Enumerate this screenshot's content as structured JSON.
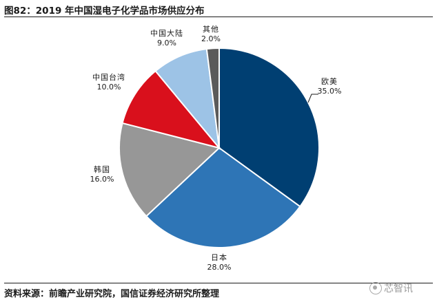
{
  "title": "图82：2019 年中国湿电子化学品市场供应分布",
  "source": "资料来源：前瞻产业研究院，国信证券经济研究所整理",
  "watermark": "芯智讯",
  "chart_data": {
    "type": "pie",
    "title": "图82：2019 年中国湿电子化学品市场供应分布",
    "slices": [
      {
        "label": "欧美",
        "value": 35.0,
        "value_label": "35.0%",
        "color": "#003f72"
      },
      {
        "label": "日本",
        "value": 28.0,
        "value_label": "28.0%",
        "color": "#2e75b6"
      },
      {
        "label": "韩国",
        "value": 16.0,
        "value_label": "16.0%",
        "color": "#979797"
      },
      {
        "label": "中国台湾",
        "value": 10.0,
        "value_label": "10.0%",
        "color": "#d9101c"
      },
      {
        "label": "中国大陆",
        "value": 9.0,
        "value_label": "9.0%",
        "color": "#9dc3e6"
      },
      {
        "label": "其他",
        "value": 2.0,
        "value_label": "2.0%",
        "color": "#5a5a5a"
      }
    ],
    "start_angle": "12 o'clock",
    "direction": "clockwise",
    "legend": "none"
  }
}
